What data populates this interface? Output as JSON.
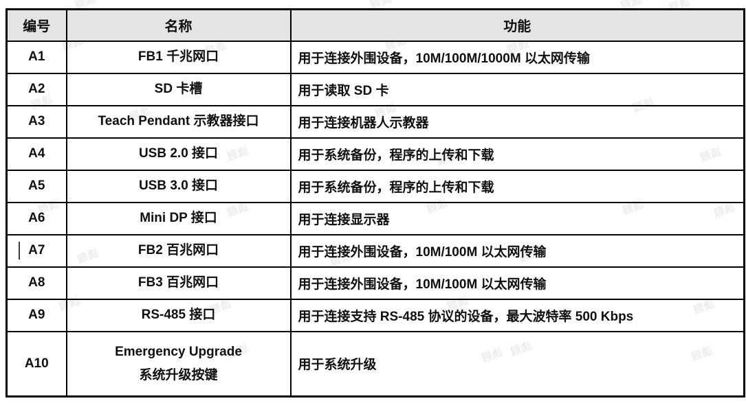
{
  "watermark": {
    "text": "顾彪"
  },
  "colors": {
    "border": "#000000",
    "header_bg": "#e4e4e4",
    "text": "#0f0f0f",
    "watermark": "#e9edf0"
  },
  "table": {
    "headers": [
      {
        "label": "编号"
      },
      {
        "label": "名称"
      },
      {
        "label": "功能"
      }
    ],
    "rows": [
      {
        "id": "A1",
        "name": "FB1 千兆网口",
        "function": "用于连接外围设备，10M/100M/1000M 以太网传输"
      },
      {
        "id": "A2",
        "name": "SD 卡槽",
        "function": "用于读取 SD 卡"
      },
      {
        "id": "A3",
        "name": "Teach Pendant 示教器接口",
        "function": "用于连接机器人示教器"
      },
      {
        "id": "A4",
        "name": "USB 2.0 接口",
        "function": "用于系统备份，程序的上传和下载"
      },
      {
        "id": "A5",
        "name": "USB 3.0 接口",
        "function": "用于系统备份，程序的上传和下载"
      },
      {
        "id": "A6",
        "name": "Mini DP 接口",
        "function": "用于连接显示器"
      },
      {
        "id": "A7",
        "name": "FB2 百兆网口",
        "function": "用于连接外围设备，10M/100M 以太网传输",
        "cursor": true
      },
      {
        "id": "A8",
        "name": "FB3 百兆网口",
        "function": "用于连接外围设备，10M/100M 以太网传输"
      },
      {
        "id": "A9",
        "name": "RS-485 接口",
        "function": "用于连接支持 RS-485 协议的设备，最大波特率 500 Kbps"
      },
      {
        "id": "A10",
        "name": "Emergency Upgrade\n系统升级按键",
        "function": "用于系统升级",
        "tall": true
      }
    ]
  }
}
